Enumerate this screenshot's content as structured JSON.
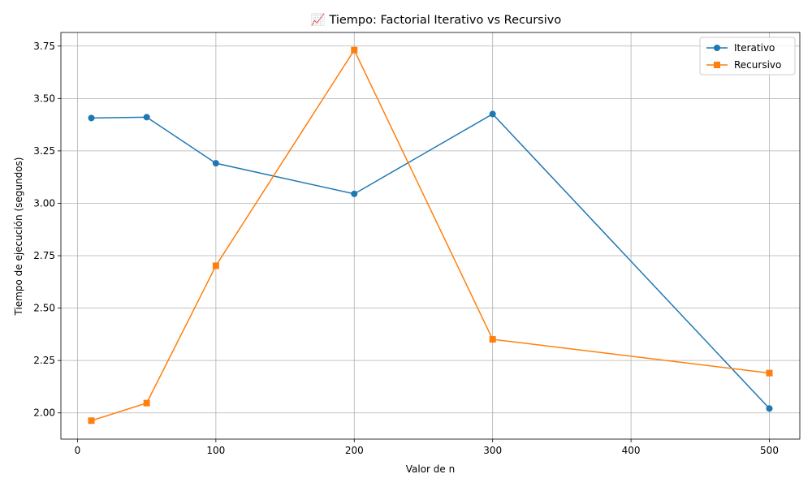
{
  "chart_data": {
    "type": "line",
    "title": "📈 Tiempo: Factorial Iterativo vs Recursivo",
    "xlabel": "Valor de n",
    "ylabel": "Tiempo de ejecución (segundos)",
    "x": [
      10,
      50,
      100,
      200,
      300,
      500
    ],
    "xlim": [
      -12,
      522
    ],
    "ylim": [
      1.875,
      3.815
    ],
    "xticks": [
      0,
      100,
      200,
      300,
      400,
      500
    ],
    "yticks": [
      2.0,
      2.25,
      2.5,
      2.75,
      3.0,
      3.25,
      3.5,
      3.75
    ],
    "ytick_labels": [
      "2.00",
      "2.25",
      "2.50",
      "2.75",
      "3.00",
      "3.25",
      "3.50",
      "3.75"
    ],
    "grid": true,
    "legend_position": "top-right",
    "series": [
      {
        "name": "Iterativo",
        "color": "#1f77b4",
        "marker": "circle",
        "values": [
          3.407,
          3.411,
          3.191,
          3.045,
          3.426,
          2.021
        ]
      },
      {
        "name": "Recursivo",
        "color": "#ff7f0e",
        "marker": "square",
        "values": [
          1.963,
          2.047,
          2.702,
          3.731,
          2.351,
          2.19
        ]
      }
    ]
  }
}
